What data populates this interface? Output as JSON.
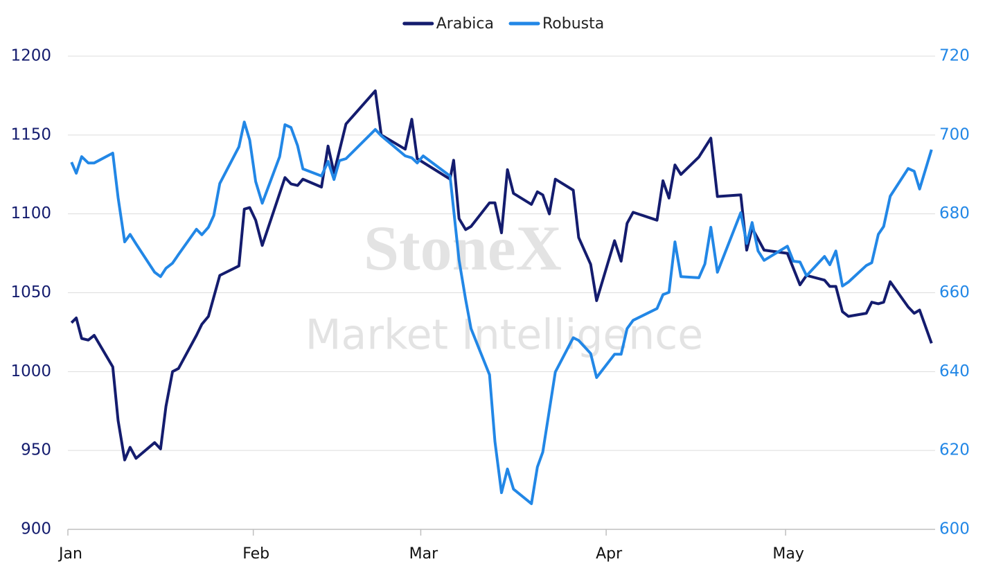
{
  "chart_data": {
    "type": "line",
    "watermark": {
      "brand": "StoneX",
      "tagline": "Market Intelligence"
    },
    "xlim": [
      0,
      145
    ],
    "xticks": [
      {
        "value": 0,
        "label": "Jan"
      },
      {
        "value": 31,
        "label": "Feb"
      },
      {
        "value": 59,
        "label": "Mar"
      },
      {
        "value": 90,
        "label": "Apr"
      },
      {
        "value": 120,
        "label": "May"
      }
    ],
    "ylim": [
      900,
      1200
    ],
    "yticks": [
      900,
      950,
      1000,
      1050,
      1100,
      1150,
      1200
    ],
    "y2lim": [
      600,
      720
    ],
    "y2ticks": [
      600,
      620,
      640,
      660,
      680,
      700,
      720
    ],
    "grid": true,
    "legend": "top",
    "series": [
      {
        "name": "Arabica",
        "color": "#141c6e",
        "x": [
          0.6,
          1.4,
          2.3,
          3.4,
          4.4,
          7.5,
          8.4,
          9.5,
          10.4,
          11.4,
          14.5,
          15.5,
          16.4,
          17.5,
          18.5,
          21.5,
          22.4,
          23.5,
          25.4,
          28.6,
          29.5,
          30.4,
          31.4,
          32.5,
          36.3,
          37.3,
          38.4,
          39.3,
          42.4,
          43.5,
          44.5,
          46.5,
          51.4,
          52.4,
          56.4,
          57.5,
          58.4,
          63.9,
          64.5,
          65.4,
          66.5,
          67.4,
          70.5,
          71.4,
          72.5,
          73.5,
          74.5,
          77.5,
          78.5,
          79.4,
          80.5,
          81.5,
          84.5,
          85.4,
          87.4,
          88.4,
          91.4,
          92.5,
          93.5,
          94.5,
          98.5,
          99.5,
          100.5,
          101.5,
          102.5,
          105.5,
          107.5,
          108.6,
          112.5,
          113.5,
          114.4,
          116.4,
          120.3,
          122.4,
          123.5,
          126.5,
          127.4,
          128.4,
          129.5,
          130.5,
          133.5,
          134.4,
          135.5,
          136.4,
          137.5,
          140.5,
          141.5,
          142.4,
          144.4
        ],
        "values": [
          1031,
          1034,
          1021,
          1020,
          1023,
          1003,
          969,
          944,
          952,
          945,
          955,
          951,
          978,
          1000,
          1002,
          1023,
          1030,
          1035,
          1061,
          1067,
          1103,
          1104,
          1096,
          1080,
          1123,
          1119,
          1118,
          1122,
          1117,
          1143,
          1126,
          1157,
          1178,
          1150,
          1141,
          1160,
          1135,
          1122,
          1134,
          1097,
          1090,
          1092,
          1107,
          1107,
          1088,
          1128,
          1113,
          1106,
          1114,
          1112,
          1100,
          1122,
          1115,
          1085,
          1068,
          1045,
          1083,
          1070,
          1094,
          1101,
          1096,
          1121,
          1110,
          1131,
          1125,
          1136,
          1148,
          1111,
          1112,
          1077,
          1091,
          1077,
          1075,
          1055,
          1061,
          1058,
          1054,
          1054,
          1038,
          1035,
          1037,
          1044,
          1043,
          1044,
          1057,
          1041,
          1037,
          1039,
          1018
        ]
      },
      {
        "name": "Robusta",
        "color": "#2287e6",
        "axis": "y2",
        "x": [
          0.6,
          1.4,
          2.3,
          3.4,
          4.4,
          7.5,
          8.4,
          9.5,
          10.4,
          11.4,
          14.5,
          15.5,
          16.4,
          17.5,
          18.5,
          21.5,
          22.4,
          23.5,
          24.4,
          25.4,
          28.6,
          29.5,
          30.4,
          31.4,
          32.5,
          35.4,
          36.3,
          37.3,
          38.4,
          39.3,
          42.4,
          43.5,
          44.5,
          45.4,
          46.5,
          51.4,
          52.4,
          56.4,
          57.5,
          58.4,
          59.4,
          63.9,
          65.4,
          66.5,
          67.4,
          70.5,
          71.4,
          72.5,
          73.5,
          74.5,
          77.5,
          78.5,
          79.4,
          81.5,
          84.5,
          85.4,
          87.4,
          88.4,
          91.4,
          92.5,
          93.5,
          94.5,
          98.5,
          99.5,
          100.5,
          101.5,
          102.5,
          105.5,
          106.5,
          107.5,
          108.6,
          112.5,
          113.5,
          114.4,
          115.4,
          116.4,
          120.3,
          121.3,
          122.4,
          123.5,
          126.5,
          127.4,
          128.4,
          129.5,
          130.5,
          133.5,
          134.4,
          135.5,
          136.4,
          137.5,
          140.5,
          141.5,
          142.4,
          144.4
        ],
        "values": [
          693.1,
          690.3,
          694.5,
          692.9,
          692.9,
          695.4,
          684.1,
          672.9,
          674.8,
          672.4,
          665.2,
          664.1,
          666.2,
          667.5,
          669.7,
          676.1,
          674.7,
          676.6,
          679.6,
          687.7,
          697.0,
          703.3,
          698.7,
          688.2,
          682.7,
          694.5,
          702.6,
          701.9,
          697.3,
          691.4,
          689.6,
          693.3,
          688.7,
          693.5,
          694.0,
          701.4,
          699.8,
          694.7,
          694.2,
          692.9,
          694.7,
          689.6,
          668.3,
          658.3,
          650.9,
          639.2,
          622.3,
          609.3,
          615.3,
          610.2,
          606.5,
          615.8,
          619.6,
          639.9,
          648.6,
          647.9,
          644.6,
          638.5,
          644.4,
          644.4,
          650.9,
          653.0,
          656.0,
          659.5,
          660.1,
          672.9,
          664.1,
          663.8,
          667.3,
          676.6,
          665.2,
          680.3,
          672.5,
          677.8,
          670.6,
          668.2,
          671.8,
          668.0,
          667.8,
          664.3,
          669.2,
          667.1,
          670.6,
          661.7,
          662.7,
          666.9,
          667.6,
          674.8,
          676.8,
          684.5,
          691.5,
          690.8,
          686.3,
          696.3
        ]
      }
    ]
  }
}
